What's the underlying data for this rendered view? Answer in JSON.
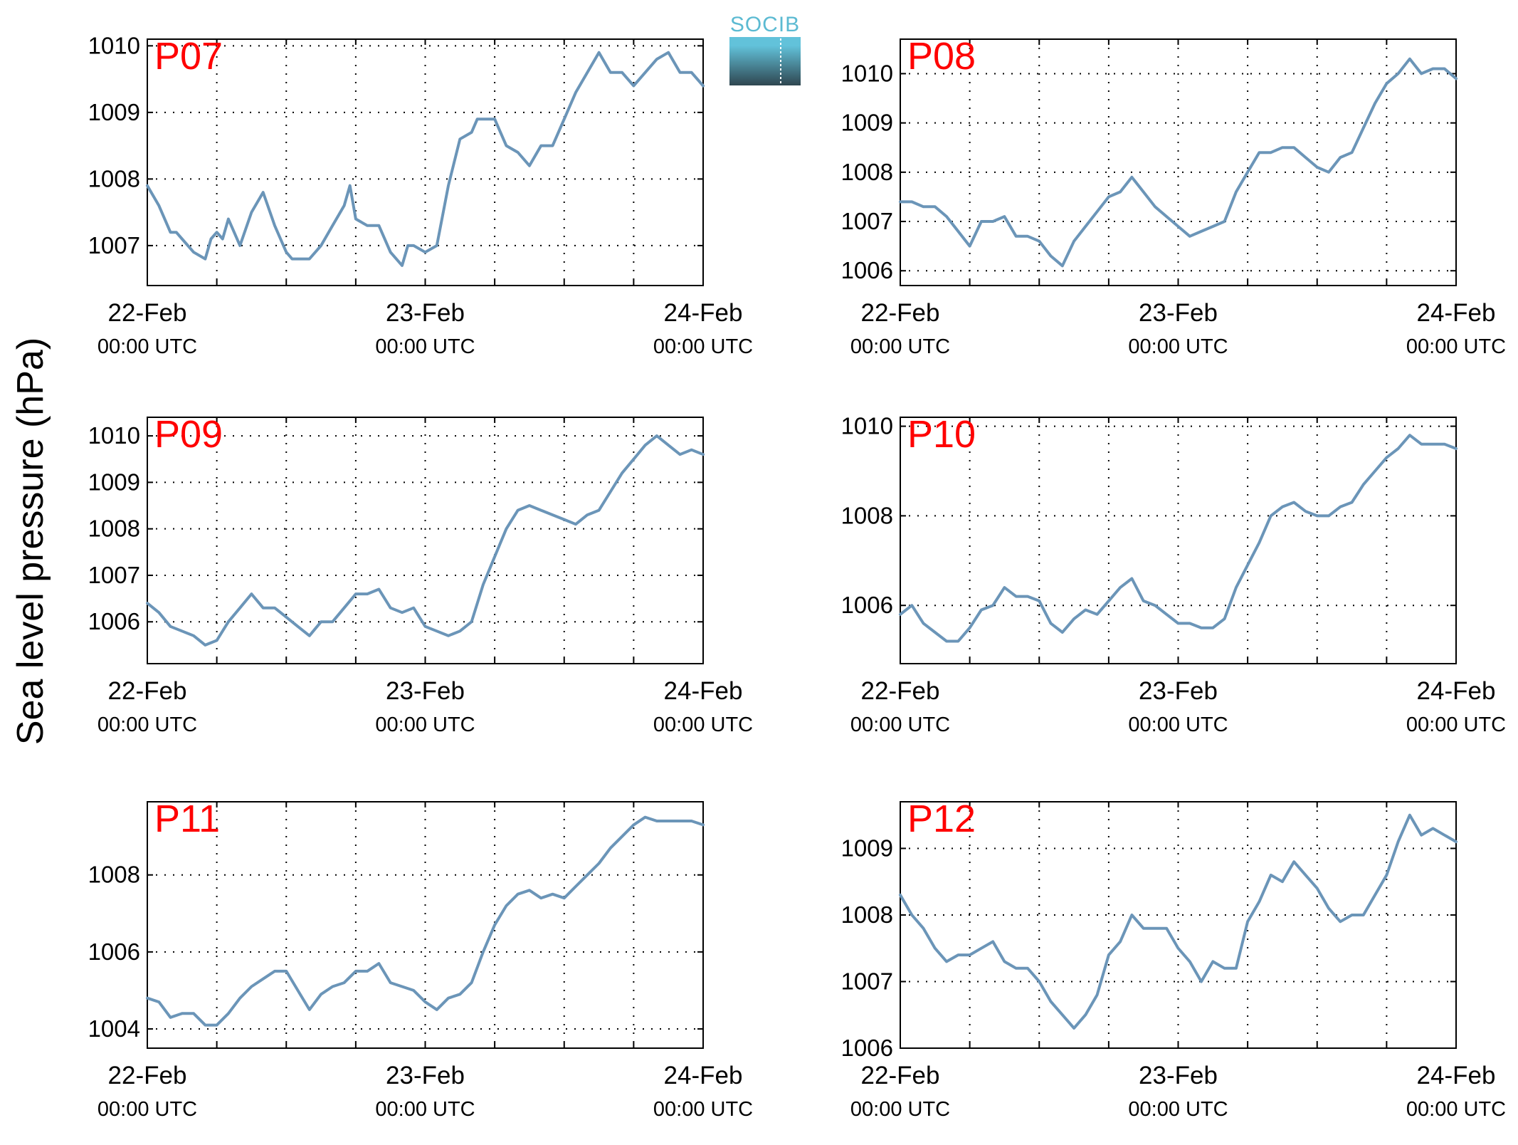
{
  "figure": {
    "ylabel": "Sea level pressure (hPa)",
    "logo": {
      "text": "SOCIB",
      "color_top": "#62c2da",
      "color_bottom": "#2f4650"
    }
  },
  "style": {
    "line_color": "#6b95b8",
    "label_color": "#ff0000",
    "grid": "dotted"
  },
  "chart_data": [
    {
      "type": "line",
      "panel": "P07",
      "grid": true,
      "x_ticks": [
        "22-Feb 00:00 UTC",
        "23-Feb 00:00 UTC",
        "24-Feb 00:00 UTC"
      ],
      "x_tick_date": [
        "22-Feb",
        "23-Feb",
        "24-Feb"
      ],
      "x_tick_time": [
        "00:00 UTC",
        "00:00 UTC",
        "00:00 UTC"
      ],
      "xlim_hours": [
        0,
        48
      ],
      "ylim": [
        1006.4,
        1010.1
      ],
      "yticks": [
        1007,
        1008,
        1009,
        1010
      ],
      "series": [
        {
          "x": [
            0,
            1,
            2,
            2.5,
            3,
            4,
            5,
            5.5,
            6,
            6.5,
            7,
            8,
            9,
            10,
            11,
            12,
            12.5,
            13,
            14,
            15,
            16,
            17,
            17.5,
            18,
            19,
            20,
            21,
            22,
            22.5,
            23,
            24,
            25,
            26,
            27,
            28,
            28.5,
            29,
            30,
            31,
            32,
            33,
            34,
            35,
            36,
            37,
            38,
            39,
            40,
            41,
            42,
            43,
            44,
            45,
            46,
            46.5,
            47,
            48
          ],
          "y": [
            1007.9,
            1007.6,
            1007.2,
            1007.2,
            1007.1,
            1006.9,
            1006.8,
            1007.1,
            1007.2,
            1007.1,
            1007.4,
            1007.0,
            1007.5,
            1007.8,
            1007.3,
            1006.9,
            1006.8,
            1006.8,
            1006.8,
            1007.0,
            1007.3,
            1007.6,
            1007.9,
            1007.4,
            1007.3,
            1007.3,
            1006.9,
            1006.7,
            1007.0,
            1007.0,
            1006.9,
            1007.0,
            1007.9,
            1008.6,
            1008.7,
            1008.9,
            1008.9,
            1008.9,
            1008.5,
            1008.4,
            1008.2,
            1008.5,
            1008.5,
            1008.9,
            1009.3,
            1009.6,
            1009.9,
            1009.6,
            1009.6,
            1009.4,
            1009.6,
            1009.8,
            1009.9,
            1009.6,
            1009.6,
            1009.6,
            1009.4
          ]
        }
      ]
    },
    {
      "type": "line",
      "panel": "P08",
      "grid": true,
      "x_ticks": [
        "22-Feb 00:00 UTC",
        "23-Feb 00:00 UTC",
        "24-Feb 00:00 UTC"
      ],
      "x_tick_date": [
        "22-Feb",
        "23-Feb",
        "24-Feb"
      ],
      "x_tick_time": [
        "00:00 UTC",
        "00:00 UTC",
        "00:00 UTC"
      ],
      "xlim_hours": [
        0,
        48
      ],
      "ylim": [
        1005.7,
        1010.7
      ],
      "yticks": [
        1006,
        1007,
        1008,
        1009,
        1010
      ],
      "series": [
        {
          "x": [
            0,
            1,
            2,
            3,
            4,
            5,
            6,
            7,
            8,
            9,
            10,
            11,
            12,
            13,
            14,
            15,
            16,
            17,
            18,
            19,
            20,
            21,
            22,
            23,
            24,
            25,
            26,
            27,
            28,
            29,
            30,
            31,
            32,
            33,
            34,
            35,
            36,
            37,
            38,
            39,
            40,
            41,
            42,
            43,
            44,
            45,
            46,
            47,
            48
          ],
          "y": [
            1007.4,
            1007.4,
            1007.3,
            1007.3,
            1007.1,
            1006.8,
            1006.5,
            1007.0,
            1007.0,
            1007.1,
            1006.7,
            1006.7,
            1006.6,
            1006.3,
            1006.1,
            1006.6,
            1006.9,
            1007.2,
            1007.5,
            1007.6,
            1007.9,
            1007.6,
            1007.3,
            1007.1,
            1006.9,
            1006.7,
            1006.8,
            1006.9,
            1007.0,
            1007.6,
            1008.0,
            1008.4,
            1008.4,
            1008.5,
            1008.5,
            1008.3,
            1008.1,
            1008.0,
            1008.3,
            1008.4,
            1008.9,
            1009.4,
            1009.8,
            1010.0,
            1010.3,
            1010.0,
            1010.1,
            1010.1,
            1009.9
          ]
        }
      ]
    },
    {
      "type": "line",
      "panel": "P09",
      "grid": true,
      "x_ticks": [
        "22-Feb 00:00 UTC",
        "23-Feb 00:00 UTC",
        "24-Feb 00:00 UTC"
      ],
      "x_tick_date": [
        "22-Feb",
        "23-Feb",
        "24-Feb"
      ],
      "x_tick_time": [
        "00:00 UTC",
        "00:00 UTC",
        "00:00 UTC"
      ],
      "xlim_hours": [
        0,
        48
      ],
      "ylim": [
        1005.1,
        1010.4
      ],
      "yticks": [
        1006,
        1007,
        1008,
        1009,
        1010
      ],
      "series": [
        {
          "x": [
            0,
            1,
            2,
            3,
            4,
            5,
            6,
            7,
            8,
            9,
            10,
            11,
            12,
            13,
            14,
            15,
            16,
            17,
            18,
            19,
            20,
            21,
            22,
            23,
            24,
            25,
            26,
            27,
            28,
            29,
            30,
            31,
            32,
            33,
            34,
            35,
            36,
            37,
            38,
            39,
            40,
            41,
            42,
            43,
            44,
            45,
            46,
            47,
            48
          ],
          "y": [
            1006.4,
            1006.2,
            1005.9,
            1005.8,
            1005.7,
            1005.5,
            1005.6,
            1006.0,
            1006.3,
            1006.6,
            1006.3,
            1006.3,
            1006.1,
            1005.9,
            1005.7,
            1006.0,
            1006.0,
            1006.3,
            1006.6,
            1006.6,
            1006.7,
            1006.3,
            1006.2,
            1006.3,
            1005.9,
            1005.8,
            1005.7,
            1005.8,
            1006.0,
            1006.8,
            1007.4,
            1008.0,
            1008.4,
            1008.5,
            1008.4,
            1008.3,
            1008.2,
            1008.1,
            1008.3,
            1008.4,
            1008.8,
            1009.2,
            1009.5,
            1009.8,
            1010.0,
            1009.8,
            1009.6,
            1009.7,
            1009.6
          ]
        }
      ]
    },
    {
      "type": "line",
      "panel": "P10",
      "grid": true,
      "x_ticks": [
        "22-Feb 00:00 UTC",
        "23-Feb 00:00 UTC",
        "24-Feb 00:00 UTC"
      ],
      "x_tick_date": [
        "22-Feb",
        "23-Feb",
        "24-Feb"
      ],
      "x_tick_time": [
        "00:00 UTC",
        "00:00 UTC",
        "00:00 UTC"
      ],
      "xlim_hours": [
        0,
        48
      ],
      "ylim": [
        1004.7,
        1010.2
      ],
      "yticks": [
        1006,
        1008,
        1010
      ],
      "series": [
        {
          "x": [
            0,
            1,
            2,
            3,
            4,
            5,
            6,
            7,
            8,
            9,
            10,
            11,
            12,
            13,
            14,
            15,
            16,
            17,
            18,
            19,
            20,
            21,
            22,
            23,
            24,
            25,
            26,
            27,
            28,
            29,
            30,
            31,
            32,
            33,
            34,
            35,
            36,
            37,
            38,
            39,
            40,
            41,
            42,
            43,
            44,
            45,
            46,
            47,
            48
          ],
          "y": [
            1005.8,
            1006.0,
            1005.6,
            1005.4,
            1005.2,
            1005.2,
            1005.5,
            1005.9,
            1006.0,
            1006.4,
            1006.2,
            1006.2,
            1006.1,
            1005.6,
            1005.4,
            1005.7,
            1005.9,
            1005.8,
            1006.1,
            1006.4,
            1006.6,
            1006.1,
            1006.0,
            1005.8,
            1005.6,
            1005.6,
            1005.5,
            1005.5,
            1005.7,
            1006.4,
            1006.9,
            1007.4,
            1008.0,
            1008.2,
            1008.3,
            1008.1,
            1008.0,
            1008.0,
            1008.2,
            1008.3,
            1008.7,
            1009.0,
            1009.3,
            1009.5,
            1009.8,
            1009.6,
            1009.6,
            1009.6,
            1009.5
          ]
        }
      ]
    },
    {
      "type": "line",
      "panel": "P11",
      "grid": true,
      "x_ticks": [
        "22-Feb 00:00 UTC",
        "23-Feb 00:00 UTC",
        "24-Feb 00:00 UTC"
      ],
      "x_tick_date": [
        "22-Feb",
        "23-Feb",
        "24-Feb"
      ],
      "x_tick_time": [
        "00:00 UTC",
        "00:00 UTC",
        "00:00 UTC"
      ],
      "xlim_hours": [
        0,
        48
      ],
      "ylim": [
        1003.5,
        1009.9
      ],
      "yticks": [
        1004,
        1006,
        1008
      ],
      "series": [
        {
          "x": [
            0,
            1,
            2,
            3,
            4,
            5,
            6,
            7,
            8,
            9,
            10,
            11,
            12,
            13,
            14,
            15,
            16,
            17,
            18,
            19,
            20,
            21,
            22,
            23,
            24,
            25,
            26,
            27,
            28,
            29,
            30,
            31,
            32,
            33,
            34,
            35,
            36,
            37,
            38,
            39,
            40,
            41,
            42,
            43,
            44,
            45,
            46,
            47,
            48
          ],
          "y": [
            1004.8,
            1004.7,
            1004.3,
            1004.4,
            1004.4,
            1004.1,
            1004.1,
            1004.4,
            1004.8,
            1005.1,
            1005.3,
            1005.5,
            1005.5,
            1005.0,
            1004.5,
            1004.9,
            1005.1,
            1005.2,
            1005.5,
            1005.5,
            1005.7,
            1005.2,
            1005.1,
            1005.0,
            1004.7,
            1004.5,
            1004.8,
            1004.9,
            1005.2,
            1006.0,
            1006.7,
            1007.2,
            1007.5,
            1007.6,
            1007.4,
            1007.5,
            1007.4,
            1007.7,
            1008.0,
            1008.3,
            1008.7,
            1009.0,
            1009.3,
            1009.5,
            1009.4,
            1009.4,
            1009.4,
            1009.4,
            1009.3
          ]
        }
      ]
    },
    {
      "type": "line",
      "panel": "P12",
      "grid": true,
      "x_ticks": [
        "22-Feb 00:00 UTC",
        "23-Feb 00:00 UTC",
        "24-Feb 00:00 UTC"
      ],
      "x_tick_date": [
        "22-Feb",
        "23-Feb",
        "24-Feb"
      ],
      "x_tick_time": [
        "00:00 UTC",
        "00:00 UTC",
        "00:00 UTC"
      ],
      "xlim_hours": [
        0,
        48
      ],
      "ylim": [
        1006.0,
        1009.7
      ],
      "yticks": [
        1006,
        1007,
        1008,
        1009
      ],
      "series": [
        {
          "x": [
            0,
            1,
            2,
            3,
            4,
            5,
            6,
            7,
            8,
            9,
            10,
            11,
            12,
            13,
            14,
            15,
            16,
            17,
            18,
            19,
            20,
            21,
            22,
            23,
            24,
            25,
            26,
            27,
            28,
            29,
            30,
            31,
            32,
            33,
            34,
            35,
            36,
            37,
            38,
            39,
            40,
            41,
            42,
            43,
            44,
            45,
            46,
            47,
            48
          ],
          "y": [
            1008.3,
            1008.0,
            1007.8,
            1007.5,
            1007.3,
            1007.4,
            1007.4,
            1007.5,
            1007.6,
            1007.3,
            1007.2,
            1007.2,
            1007.0,
            1006.7,
            1006.5,
            1006.3,
            1006.5,
            1006.8,
            1007.4,
            1007.6,
            1008.0,
            1007.8,
            1007.8,
            1007.8,
            1007.5,
            1007.3,
            1007.0,
            1007.3,
            1007.2,
            1007.2,
            1007.9,
            1008.2,
            1008.6,
            1008.5,
            1008.8,
            1008.6,
            1008.4,
            1008.1,
            1007.9,
            1008.0,
            1008.0,
            1008.3,
            1008.6,
            1009.1,
            1009.5,
            1009.2,
            1009.3,
            1009.2,
            1009.1
          ]
        }
      ]
    }
  ]
}
